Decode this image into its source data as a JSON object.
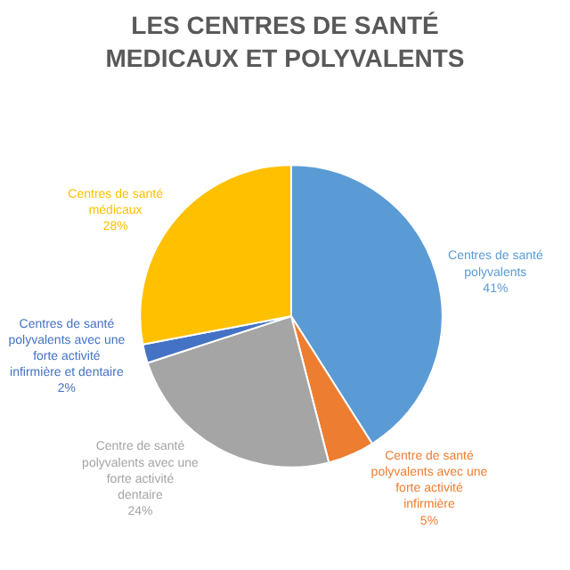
{
  "chart_data": {
    "type": "pie",
    "title": "LES CENTRES DE SANTÉ MEDICAUX ET POLYVALENTS",
    "categories": [
      "Centres de santé polyvalents",
      "Centre de santé polyvalents avec une forte activité infirmière",
      "Centre de santé polyvalents avec une forte activité dentaire",
      "Centres de santé polyvalents avec une forte activité infirmière et dentaire",
      "Centres de santé médicaux"
    ],
    "values": [
      41,
      5,
      24,
      2,
      28
    ],
    "value_labels": [
      "41%",
      "5%",
      "24%",
      "2%",
      "28%"
    ],
    "colors": [
      "#5b9bd5",
      "#ed7d31",
      "#a5a5a5",
      "#4472c4",
      "#ffc000"
    ],
    "legend": false
  }
}
